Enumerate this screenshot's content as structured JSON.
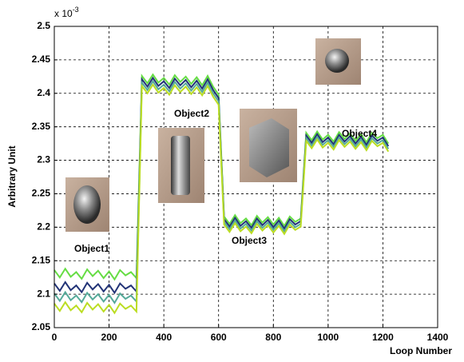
{
  "chart_data": {
    "type": "line",
    "y_label": "Arbitrary Unit",
    "x_label": "Loop Number",
    "y_multiplier": {
      "base": "x 10",
      "exponent": "-3"
    },
    "xlim": [
      0,
      1400
    ],
    "xticks": [
      0,
      200,
      400,
      600,
      800,
      1000,
      1200,
      1400
    ],
    "ylim": [
      2.05,
      2.5
    ],
    "yticks": [
      2.05,
      2.1,
      2.15,
      2.2,
      2.25,
      2.3,
      2.35,
      2.4,
      2.45,
      2.5
    ],
    "grid": true,
    "annotations": [
      "Object1",
      "Object2",
      "Object3",
      "Object4"
    ],
    "x": [
      0,
      20,
      40,
      60,
      80,
      100,
      120,
      140,
      160,
      180,
      200,
      220,
      240,
      260,
      280,
      300,
      320,
      340,
      360,
      380,
      400,
      420,
      440,
      460,
      480,
      500,
      520,
      540,
      560,
      580,
      600,
      620,
      640,
      660,
      680,
      700,
      720,
      740,
      760,
      780,
      800,
      820,
      840,
      860,
      880,
      900,
      920,
      940,
      960,
      980,
      1000,
      1020,
      1040,
      1060,
      1080,
      1100,
      1120,
      1140,
      1160,
      1180,
      1200,
      1220
    ],
    "series": [
      {
        "color": "#66dd44",
        "values": [
          2.136,
          2.125,
          2.138,
          2.126,
          2.133,
          2.123,
          2.137,
          2.127,
          2.135,
          2.124,
          2.134,
          2.122,
          2.136,
          2.128,
          2.133,
          2.124,
          2.426,
          2.415,
          2.428,
          2.416,
          2.423,
          2.413,
          2.427,
          2.417,
          2.425,
          2.414,
          2.424,
          2.412,
          2.426,
          2.41,
          2.398,
          2.216,
          2.205,
          2.218,
          2.206,
          2.213,
          2.203,
          2.217,
          2.207,
          2.215,
          2.204,
          2.214,
          2.202,
          2.216,
          2.208,
          2.213,
          2.341,
          2.33,
          2.343,
          2.331,
          2.338,
          2.328,
          2.342,
          2.332,
          2.34,
          2.329,
          2.339,
          2.327,
          2.341,
          2.333,
          2.338,
          2.325
        ]
      },
      {
        "color": "#223377",
        "values": [
          2.116,
          2.105,
          2.118,
          2.106,
          2.113,
          2.103,
          2.117,
          2.107,
          2.115,
          2.104,
          2.114,
          2.102,
          2.116,
          2.108,
          2.113,
          2.104,
          2.421,
          2.41,
          2.423,
          2.411,
          2.418,
          2.408,
          2.422,
          2.412,
          2.42,
          2.409,
          2.419,
          2.407,
          2.421,
          2.405,
          2.393,
          2.212,
          2.201,
          2.214,
          2.202,
          2.209,
          2.199,
          2.213,
          2.203,
          2.211,
          2.2,
          2.21,
          2.198,
          2.212,
          2.204,
          2.209,
          2.337,
          2.326,
          2.339,
          2.327,
          2.334,
          2.324,
          2.338,
          2.328,
          2.336,
          2.325,
          2.335,
          2.323,
          2.337,
          2.329,
          2.334,
          2.321
        ]
      },
      {
        "color": "#55aa99",
        "values": [
          2.101,
          2.09,
          2.103,
          2.091,
          2.098,
          2.088,
          2.102,
          2.092,
          2.1,
          2.089,
          2.099,
          2.087,
          2.101,
          2.093,
          2.098,
          2.089,
          2.416,
          2.405,
          2.418,
          2.406,
          2.413,
          2.403,
          2.417,
          2.407,
          2.415,
          2.404,
          2.414,
          2.402,
          2.416,
          2.4,
          2.388,
          2.208,
          2.197,
          2.21,
          2.198,
          2.205,
          2.195,
          2.209,
          2.199,
          2.207,
          2.196,
          2.206,
          2.194,
          2.208,
          2.2,
          2.205,
          2.333,
          2.322,
          2.335,
          2.323,
          2.33,
          2.32,
          2.334,
          2.324,
          2.332,
          2.321,
          2.331,
          2.319,
          2.333,
          2.325,
          2.33,
          2.317
        ]
      },
      {
        "color": "#bbdd22",
        "values": [
          2.086,
          2.075,
          2.088,
          2.076,
          2.083,
          2.073,
          2.087,
          2.077,
          2.085,
          2.074,
          2.084,
          2.072,
          2.086,
          2.078,
          2.083,
          2.074,
          2.411,
          2.4,
          2.413,
          2.401,
          2.408,
          2.398,
          2.412,
          2.402,
          2.41,
          2.399,
          2.409,
          2.397,
          2.411,
          2.395,
          2.383,
          2.204,
          2.193,
          2.206,
          2.194,
          2.201,
          2.191,
          2.205,
          2.195,
          2.203,
          2.192,
          2.202,
          2.19,
          2.204,
          2.196,
          2.201,
          2.329,
          2.318,
          2.331,
          2.319,
          2.326,
          2.316,
          2.33,
          2.32,
          2.328,
          2.317,
          2.327,
          2.315,
          2.329,
          2.321,
          2.326,
          2.313
        ]
      }
    ]
  }
}
